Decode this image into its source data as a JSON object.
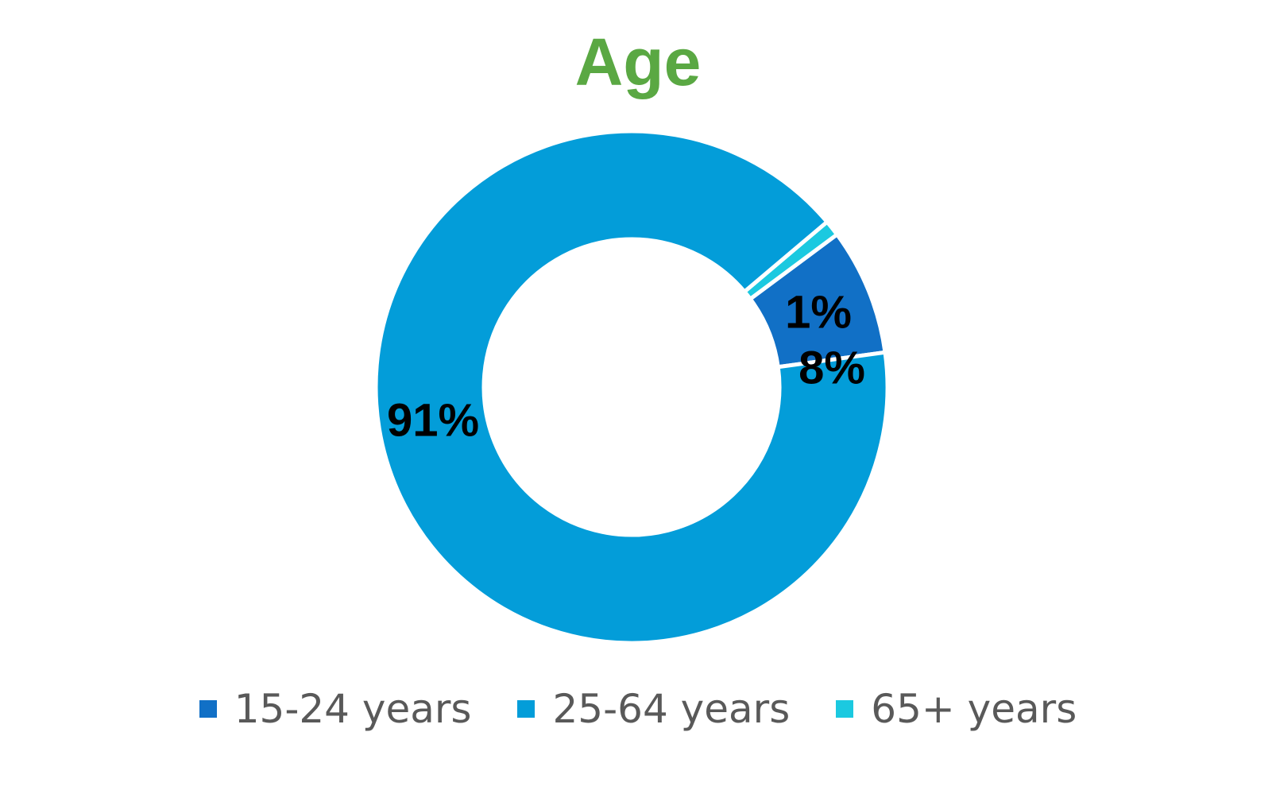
{
  "chart_data": {
    "type": "pie",
    "subtype": "donut",
    "title": "Age",
    "title_color": "#5aa843",
    "categories": [
      "15-24 years",
      "25-64 years",
      "65+ years"
    ],
    "values": [
      8,
      91,
      1
    ],
    "data_labels": [
      "8%",
      "91%",
      "1%"
    ],
    "colors": [
      "#1170c6",
      "#039dd9",
      "#1bc9e0"
    ],
    "legend_position": "bottom",
    "label_color": "#000000"
  }
}
